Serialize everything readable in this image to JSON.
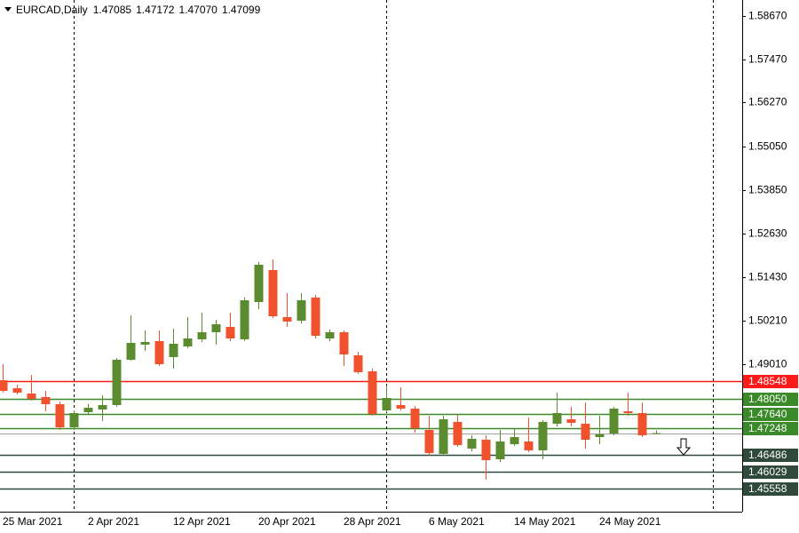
{
  "header": {
    "title": "EURCAD,Daily",
    "ohlc": [
      "1.47085",
      "1.47172",
      "1.47070",
      "1.47099"
    ]
  },
  "chart_data": {
    "type": "candlestick",
    "categories": [
      "25 Mar 2021",
      null,
      null,
      null,
      null,
      null,
      "2 Apr 2021",
      null,
      null,
      null,
      null,
      null,
      "12 Apr 2021",
      null,
      null,
      null,
      null,
      null,
      "20 Apr 2021",
      null,
      null,
      null,
      null,
      null,
      "28 Apr 2021",
      null,
      null,
      null,
      null,
      null,
      "6 May 2021",
      null,
      null,
      null,
      null,
      null,
      "14 May 2021",
      null,
      null,
      null,
      null,
      null,
      "24 May 2021",
      null,
      null,
      null,
      null
    ],
    "open": [
      1.48568,
      1.48346,
      1.48198,
      1.481,
      1.47903,
      1.47262,
      1.47681,
      1.47755,
      1.47878,
      1.49135,
      1.49554,
      1.49652,
      1.49209,
      1.49504,
      1.49702,
      1.49899,
      1.50046,
      1.49702,
      1.50736,
      1.51623,
      1.50318,
      1.50219,
      1.5086,
      1.49726,
      1.49899,
      1.49258,
      1.48814,
      1.4773,
      1.47878,
      1.4778,
      1.47188,
      1.46523,
      1.4741,
      1.46671,
      1.46917,
      1.46375,
      1.46794,
      1.46868,
      1.46622,
      1.47361,
      1.47484,
      1.47361,
      1.46991,
      1.4709,
      1.47706,
      1.47656,
      1.47085
    ],
    "high": [
      1.49012,
      1.48445,
      1.48716,
      1.48272,
      1.47977,
      1.4773,
      1.47903,
      1.48149,
      1.49184,
      1.50367,
      1.49948,
      1.49948,
      1.49997,
      1.50318,
      1.50441,
      1.50244,
      1.50441,
      1.5086,
      1.51845,
      1.51919,
      1.50983,
      1.50983,
      1.50934,
      1.49973,
      1.49948,
      1.49357,
      1.48888,
      1.4842,
      1.48371,
      1.47854,
      1.47582,
      1.47582,
      1.47607,
      1.4704,
      1.4704,
      1.47188,
      1.47238,
      1.47533,
      1.47459,
      1.48223,
      1.47829,
      1.47952,
      1.47582,
      1.47829,
      1.48223,
      1.47952,
      1.47172
    ],
    "low": [
      1.48223,
      1.48174,
      1.48001,
      1.47706,
      1.47188,
      1.47188,
      1.47632,
      1.47435,
      1.47829,
      1.4911,
      1.49381,
      1.48962,
      1.48888,
      1.49455,
      1.49628,
      1.49554,
      1.49652,
      1.49652,
      1.50539,
      1.50293,
      1.50046,
      1.50145,
      1.49726,
      1.49652,
      1.48962,
      1.48741,
      1.47582,
      1.47681,
      1.4773,
      1.47114,
      1.46474,
      1.46474,
      1.4672,
      1.46597,
      1.45808,
      1.46301,
      1.46745,
      1.46572,
      1.46375,
      1.47287,
      1.47287,
      1.46671,
      1.46794,
      1.4704,
      1.47582,
      1.46991,
      1.4707
    ],
    "close": [
      1.48272,
      1.48223,
      1.48051,
      1.47903,
      1.47262,
      1.47656,
      1.47804,
      1.47878,
      1.49135,
      1.49603,
      1.49628,
      1.49012,
      1.49578,
      1.49726,
      1.49899,
      1.5012,
      1.49726,
      1.50786,
      1.51771,
      1.50342,
      1.50194,
      1.50786,
      1.498,
      1.49899,
      1.49283,
      1.4879,
      1.47632,
      1.48075,
      1.4778,
      1.47238,
      1.46548,
      1.47484,
      1.46769,
      1.46942,
      1.4635,
      1.46868,
      1.46991,
      1.46622,
      1.4741,
      1.47656,
      1.47385,
      1.46917,
      1.47065,
      1.4778,
      1.47656,
      1.4704,
      1.47099
    ],
    "up_color": "#5a8c2f",
    "down_color": "#f0522d",
    "ylim": [
      1.44921,
      1.59114
    ],
    "yticks": [
      {
        "value": 1.5867,
        "label": "1.58670"
      },
      {
        "value": 1.5747,
        "label": "1.57470"
      },
      {
        "value": 1.5627,
        "label": "1.56270"
      },
      {
        "value": 1.5505,
        "label": "1.55050"
      },
      {
        "value": 1.5385,
        "label": "1.53850"
      },
      {
        "value": 1.5263,
        "label": "1.52630"
      },
      {
        "value": 1.5143,
        "label": "1.51430"
      },
      {
        "value": 1.5021,
        "label": "1.50210"
      },
      {
        "value": 1.4901,
        "label": "1.49010"
      }
    ],
    "levels": [
      {
        "value": 1.48548,
        "label": "1.48548",
        "color": "#ff1a1a"
      },
      {
        "value": 1.4805,
        "label": "1.48050",
        "color": "#3a8a2a"
      },
      {
        "value": 1.4764,
        "label": "1.47640",
        "color": "#3a8a2a"
      },
      {
        "value": 1.47248,
        "label": "1.47248",
        "color": "#3a8a2a"
      },
      {
        "value": 1.46486,
        "label": "1.46486",
        "color": "#2f4a3c"
      },
      {
        "value": 1.46029,
        "label": "1.46029",
        "color": "#2f4a3c"
      },
      {
        "value": 1.45558,
        "label": "1.45558",
        "color": "#2f4a3c"
      }
    ]
  }
}
